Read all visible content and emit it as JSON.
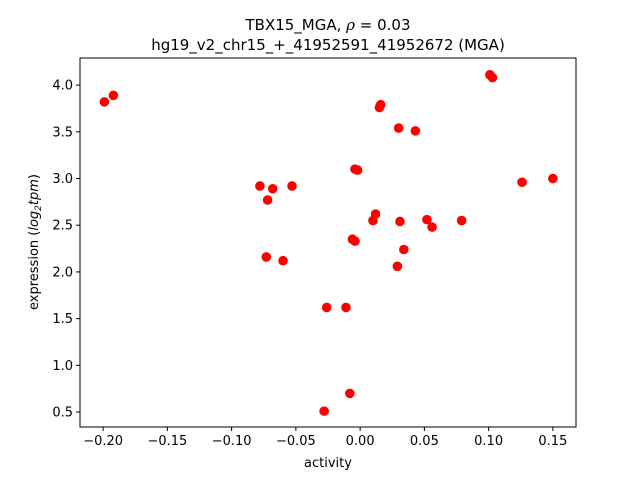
{
  "chart_data": {
    "type": "scatter",
    "title_line1_prefix": "TBX15_MGA, ",
    "title_rho_symbol": "ρ",
    "title_rho_value": " = 0.03",
    "title_line2": "hg19_v2_chr15_+_41952591_41952672 (MGA)",
    "xlabel": "activity",
    "ylabel_prefix": "expression (",
    "ylabel_log": "log",
    "ylabel_sub": "2",
    "ylabel_tpm": "tpm",
    "ylabel_suffix": ")",
    "xlim": [
      -0.218,
      0.168
    ],
    "ylim": [
      0.34,
      4.29
    ],
    "xticks": [
      -0.2,
      -0.15,
      -0.1,
      -0.05,
      0.0,
      0.05,
      0.1,
      0.15
    ],
    "xtick_labels": [
      "−0.20",
      "−0.15",
      "−0.10",
      "−0.05",
      "0.00",
      "0.05",
      "0.10",
      "0.15"
    ],
    "yticks": [
      0.5,
      1.0,
      1.5,
      2.0,
      2.5,
      3.0,
      3.5,
      4.0
    ],
    "ytick_labels": [
      "0.5",
      "1.0",
      "1.5",
      "2.0",
      "2.5",
      "3.0",
      "3.5",
      "4.0"
    ],
    "marker_color": "#ff0000",
    "points": [
      [
        -0.199,
        3.82
      ],
      [
        -0.192,
        3.89
      ],
      [
        -0.078,
        2.92
      ],
      [
        -0.072,
        2.77
      ],
      [
        -0.068,
        2.89
      ],
      [
        -0.053,
        2.92
      ],
      [
        -0.073,
        2.16
      ],
      [
        -0.06,
        2.12
      ],
      [
        -0.026,
        1.62
      ],
      [
        -0.011,
        1.62
      ],
      [
        -0.028,
        0.51
      ],
      [
        -0.008,
        0.7
      ],
      [
        -0.004,
        3.1
      ],
      [
        -0.002,
        3.09
      ],
      [
        -0.006,
        2.35
      ],
      [
        -0.004,
        2.33
      ],
      [
        0.01,
        2.55
      ],
      [
        0.012,
        2.62
      ],
      [
        0.015,
        3.76
      ],
      [
        0.016,
        3.79
      ],
      [
        0.03,
        3.54
      ],
      [
        0.043,
        3.51
      ],
      [
        0.031,
        2.54
      ],
      [
        0.034,
        2.24
      ],
      [
        0.029,
        2.06
      ],
      [
        0.052,
        2.56
      ],
      [
        0.056,
        2.48
      ],
      [
        0.079,
        2.55
      ],
      [
        0.101,
        4.11
      ],
      [
        0.103,
        4.08
      ],
      [
        0.126,
        2.96
      ],
      [
        0.15,
        3.0
      ]
    ]
  }
}
